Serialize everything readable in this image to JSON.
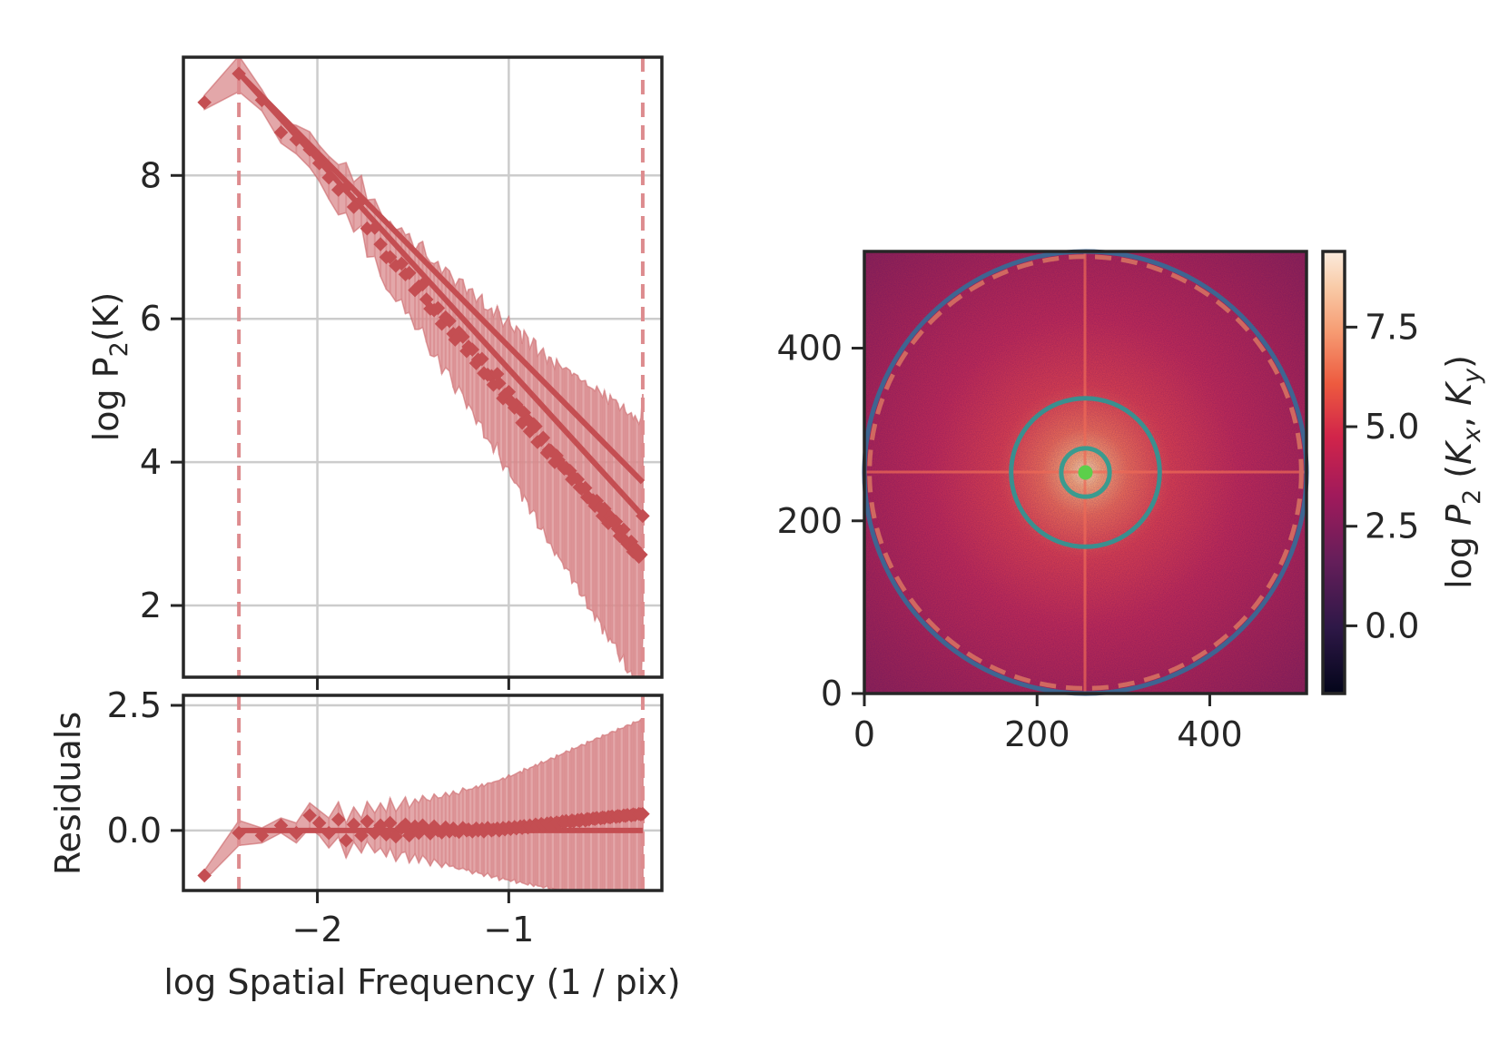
{
  "chart_data": [
    {
      "id": "power-spectrum",
      "type": "scatter",
      "title": "",
      "xlabel": "",
      "ylabel": "log P$_2$(K)",
      "ylabel_parts": {
        "pre": "log P",
        "sub": "2",
        "post": "(K)"
      },
      "xlim": [
        -2.7,
        -0.2
      ],
      "ylim": [
        1.0,
        9.65
      ],
      "yticks": [
        2,
        4,
        6,
        8
      ],
      "ytick_labels": [
        "2",
        "4",
        "6",
        "8"
      ],
      "xticks": [
        -2,
        -1
      ],
      "grid": true,
      "vlines": [
        -2.41,
        -0.3
      ],
      "colors": {
        "series": "#c44e52",
        "band": "#d9898c",
        "vline": "#dd8b8e",
        "grid": "#cccccc",
        "spine": "#262626"
      },
      "series": [
        {
          "x": [
            -2.59,
            -2.41,
            -2.29,
            -2.19,
            -2.11,
            -2.04,
            -1.99,
            -1.94,
            -1.89,
            -1.85,
            -1.81,
            -1.77,
            -1.74,
            -1.7,
            -1.67,
            -1.64,
            -1.62,
            -1.59,
            -1.56,
            -1.54,
            -1.52,
            -1.49,
            -1.47,
            -1.45,
            -1.43,
            -1.41,
            -1.39,
            -1.37,
            -1.35,
            -1.33,
            -1.31,
            -1.29,
            -1.28,
            -1.26,
            -1.24,
            -1.22,
            -1.21,
            -1.19,
            -1.17,
            -1.16,
            -1.14,
            -1.13,
            -1.11,
            -1.09,
            -1.08,
            -1.06,
            -1.05,
            -1.03,
            -1.02,
            -1.0,
            -0.99,
            -0.97,
            -0.96,
            -0.94,
            -0.93,
            -0.92,
            -0.9,
            -0.89,
            -0.87,
            -0.86,
            -0.85,
            -0.83,
            -0.82,
            -0.8,
            -0.79,
            -0.78,
            -0.76,
            -0.75,
            -0.74,
            -0.72,
            -0.71,
            -0.7,
            -0.68,
            -0.67,
            -0.66,
            -0.64,
            -0.63,
            -0.62,
            -0.6,
            -0.59,
            -0.58,
            -0.56,
            -0.55,
            -0.54,
            -0.52,
            -0.51,
            -0.5,
            -0.48,
            -0.47,
            -0.46,
            -0.44,
            -0.43,
            -0.42,
            -0.4,
            -0.39,
            -0.38,
            -0.36,
            -0.35,
            -0.34,
            -0.32,
            -0.31,
            -0.3
          ],
          "y": [
            9.02,
            9.42,
            9.05,
            8.6,
            8.5,
            8.36,
            8.17,
            7.97,
            7.8,
            7.83,
            7.56,
            7.65,
            7.26,
            7.27,
            7.04,
            6.86,
            6.86,
            6.74,
            6.77,
            6.62,
            6.64,
            6.4,
            6.45,
            6.48,
            6.27,
            6.14,
            6.12,
            6.15,
            5.93,
            6.02,
            5.97,
            5.79,
            5.71,
            5.81,
            5.75,
            5.55,
            5.61,
            5.57,
            5.38,
            5.43,
            5.44,
            5.24,
            5.22,
            5.2,
            5.08,
            5.23,
            5.1,
            4.89,
            4.94,
            4.98,
            4.85,
            4.76,
            4.8,
            4.73,
            4.55,
            4.69,
            4.59,
            4.43,
            4.53,
            4.5,
            4.28,
            4.31,
            4.34,
            4.13,
            4.17,
            4.16,
            4.0,
            4.09,
            4.03,
            3.95,
            3.91,
            3.92,
            3.88,
            3.76,
            3.79,
            3.76,
            3.65,
            3.63,
            3.64,
            3.51,
            3.5,
            3.47,
            3.39,
            3.46,
            3.36,
            3.25,
            3.35,
            3.15,
            3.24,
            3.18,
            3.17,
            3.07,
            2.97,
            3.06,
            2.9,
            2.86,
            2.89,
            2.75,
            2.8,
            2.68,
            2.71,
            3.25
          ],
          "err": [
            0.1,
            0.25,
            0.15,
            0.15,
            0.2,
            0.25,
            0.25,
            0.3,
            0.35,
            0.35,
            0.35,
            0.35,
            0.4,
            0.4,
            0.45,
            0.45,
            0.5,
            0.5,
            0.5,
            0.55,
            0.55,
            0.55,
            0.6,
            0.6,
            0.6,
            0.65,
            0.65,
            0.65,
            0.7,
            0.7,
            0.7,
            0.75,
            0.75,
            0.75,
            0.8,
            0.8,
            0.8,
            0.85,
            0.85,
            0.85,
            0.9,
            0.9,
            0.9,
            0.95,
            0.95,
            0.95,
            1.0,
            1.0,
            1.0,
            1.05,
            1.05,
            1.05,
            1.1,
            1.1,
            1.1,
            1.15,
            1.15,
            1.15,
            1.2,
            1.2,
            1.2,
            1.25,
            1.25,
            1.25,
            1.3,
            1.3,
            1.3,
            1.35,
            1.35,
            1.35,
            1.4,
            1.4,
            1.4,
            1.45,
            1.45,
            1.45,
            1.5,
            1.5,
            1.5,
            1.55,
            1.55,
            1.55,
            1.6,
            1.6,
            1.6,
            1.65,
            1.65,
            1.65,
            1.7,
            1.7,
            1.7,
            1.75,
            1.75,
            1.75,
            1.8,
            1.8,
            1.8,
            1.85,
            1.85,
            1.85,
            1.9,
            1.7
          ]
        }
      ],
      "fits": [
        {
          "x": [
            -2.41,
            -0.3
          ],
          "y": [
            9.43,
            3.72
          ]
        },
        {
          "x": [
            -2.41,
            -0.3
          ],
          "y": [
            9.43,
            3.25
          ]
        }
      ]
    },
    {
      "id": "residuals",
      "type": "scatter",
      "title": "",
      "xlabel": "log Spatial Frequency (1 / pix)",
      "ylabel": "Residuals",
      "xlim": [
        -2.7,
        -0.2
      ],
      "ylim": [
        -1.2,
        2.7
      ],
      "yticks": [
        0.0,
        2.5
      ],
      "ytick_labels": [
        "0.0",
        "2.5"
      ],
      "xticks": [
        -2,
        -1
      ],
      "xtick_labels": [
        "−2",
        "−1"
      ],
      "grid": true,
      "vlines": [
        -2.41,
        -0.3
      ],
      "series": [
        {
          "x": [
            -2.59,
            -2.41,
            -2.29,
            -2.19,
            -2.11,
            -2.04,
            -1.99,
            -1.94,
            -1.89,
            -1.85,
            -1.81,
            -1.77,
            -1.74,
            -1.7,
            -1.67,
            -1.64,
            -1.62,
            -1.59,
            -1.56,
            -1.54,
            -1.52,
            -1.49,
            -1.47,
            -1.45,
            -1.43,
            -1.41,
            -1.39,
            -1.37,
            -1.35,
            -1.33,
            -1.31,
            -1.29,
            -1.28,
            -1.26,
            -1.24,
            -1.22,
            -1.21,
            -1.19,
            -1.17,
            -1.16,
            -1.14,
            -1.13,
            -1.11,
            -1.09,
            -1.08,
            -1.06,
            -1.05,
            -1.03,
            -1.02,
            -1.0,
            -0.99,
            -0.97,
            -0.96,
            -0.94,
            -0.93,
            -0.92,
            -0.9,
            -0.89,
            -0.87,
            -0.86,
            -0.85,
            -0.83,
            -0.82,
            -0.8,
            -0.79,
            -0.78,
            -0.76,
            -0.75,
            -0.74,
            -0.72,
            -0.71,
            -0.7,
            -0.68,
            -0.67,
            -0.66,
            -0.64,
            -0.63,
            -0.62,
            -0.6,
            -0.59,
            -0.58,
            -0.56,
            -0.55,
            -0.54,
            -0.52,
            -0.51,
            -0.5,
            -0.48,
            -0.47,
            -0.46,
            -0.44,
            -0.43,
            -0.42,
            -0.4,
            -0.39,
            -0.38,
            -0.36,
            -0.35,
            -0.34,
            -0.32,
            -0.31,
            -0.3
          ],
          "y": [
            -0.9,
            -0.05,
            -0.1,
            0.1,
            -0.05,
            0.3,
            0.15,
            -0.05,
            0.22,
            -0.2,
            0.12,
            -0.1,
            0.18,
            -0.05,
            0.1,
            -0.08,
            0.15,
            -0.12,
            0.05,
            0.12,
            -0.1,
            0.08,
            -0.05,
            0.1,
            0.02,
            -0.06,
            0.08,
            0.0,
            -0.04,
            0.06,
            -0.02,
            0.04,
            0.0,
            -0.03,
            0.05,
            0.0,
            0.02,
            -0.02,
            0.04,
            0.0,
            0.03,
            -0.02,
            0.05,
            0.0,
            0.02,
            0.04,
            0.0,
            0.05,
            0.02,
            0.06,
            0.03,
            0.07,
            0.04,
            0.08,
            0.05,
            0.09,
            0.06,
            0.1,
            0.08,
            0.12,
            0.09,
            0.13,
            0.1,
            0.14,
            0.12,
            0.15,
            0.13,
            0.16,
            0.14,
            0.18,
            0.15,
            0.19,
            0.17,
            0.2,
            0.18,
            0.21,
            0.19,
            0.22,
            0.2,
            0.23,
            0.22,
            0.24,
            0.23,
            0.25,
            0.24,
            0.26,
            0.25,
            0.27,
            0.26,
            0.28,
            0.27,
            0.29,
            0.28,
            0.3,
            0.29,
            0.31,
            0.3,
            0.32,
            0.31,
            0.33,
            0.32,
            0.33
          ],
          "err": [
            0.1,
            0.25,
            0.15,
            0.15,
            0.2,
            0.25,
            0.25,
            0.3,
            0.35,
            0.35,
            0.35,
            0.35,
            0.4,
            0.4,
            0.45,
            0.45,
            0.5,
            0.5,
            0.5,
            0.55,
            0.55,
            0.55,
            0.6,
            0.6,
            0.6,
            0.65,
            0.65,
            0.65,
            0.7,
            0.7,
            0.7,
            0.75,
            0.75,
            0.75,
            0.8,
            0.8,
            0.8,
            0.85,
            0.85,
            0.85,
            0.9,
            0.9,
            0.9,
            0.95,
            0.95,
            0.95,
            1.0,
            1.0,
            1.0,
            1.05,
            1.05,
            1.05,
            1.1,
            1.1,
            1.1,
            1.15,
            1.15,
            1.15,
            1.2,
            1.2,
            1.2,
            1.25,
            1.25,
            1.25,
            1.3,
            1.3,
            1.3,
            1.35,
            1.35,
            1.35,
            1.4,
            1.4,
            1.4,
            1.45,
            1.45,
            1.45,
            1.5,
            1.5,
            1.5,
            1.55,
            1.55,
            1.55,
            1.6,
            1.6,
            1.6,
            1.65,
            1.65,
            1.65,
            1.7,
            1.7,
            1.7,
            1.75,
            1.75,
            1.75,
            1.8,
            1.8,
            1.8,
            1.85,
            1.85,
            1.85,
            1.9,
            1.7
          ]
        }
      ]
    },
    {
      "id": "power-2d",
      "type": "heatmap",
      "title": "",
      "xlim": [
        0,
        512
      ],
      "ylim": [
        0,
        512
      ],
      "xticks": [
        0,
        200,
        400
      ],
      "xtick_labels": [
        "0",
        "200",
        "400"
      ],
      "yticks": [
        0,
        200,
        400
      ],
      "ytick_labels": [
        "0",
        "200",
        "400"
      ],
      "center": [
        256,
        256
      ],
      "value_range": [
        -1.7,
        9.43
      ],
      "circles": [
        {
          "r": 28,
          "style": "solid",
          "color": "#3a9b8f"
        },
        {
          "r": 86,
          "style": "solid",
          "color": "#3a8f8f"
        },
        {
          "r": 256,
          "style": "solid",
          "color": "#3e6591"
        },
        {
          "r": 250,
          "style": "dashed",
          "color": "#d06860"
        }
      ],
      "center_dot_color": "#5ccf4a",
      "colorbar": {
        "label": "log P_2 (K_x, K_y)",
        "label_parts": [
          "log ",
          "P",
          "2",
          " (",
          "K",
          "x",
          ",  ",
          "K",
          "y",
          ")"
        ],
        "ticks": [
          0.0,
          2.5,
          5.0,
          7.5
        ],
        "tick_labels": [
          "0.0",
          "2.5",
          "5.0",
          "7.5"
        ],
        "range": [
          -1.7,
          9.4
        ],
        "colormap": "rocket"
      }
    }
  ]
}
